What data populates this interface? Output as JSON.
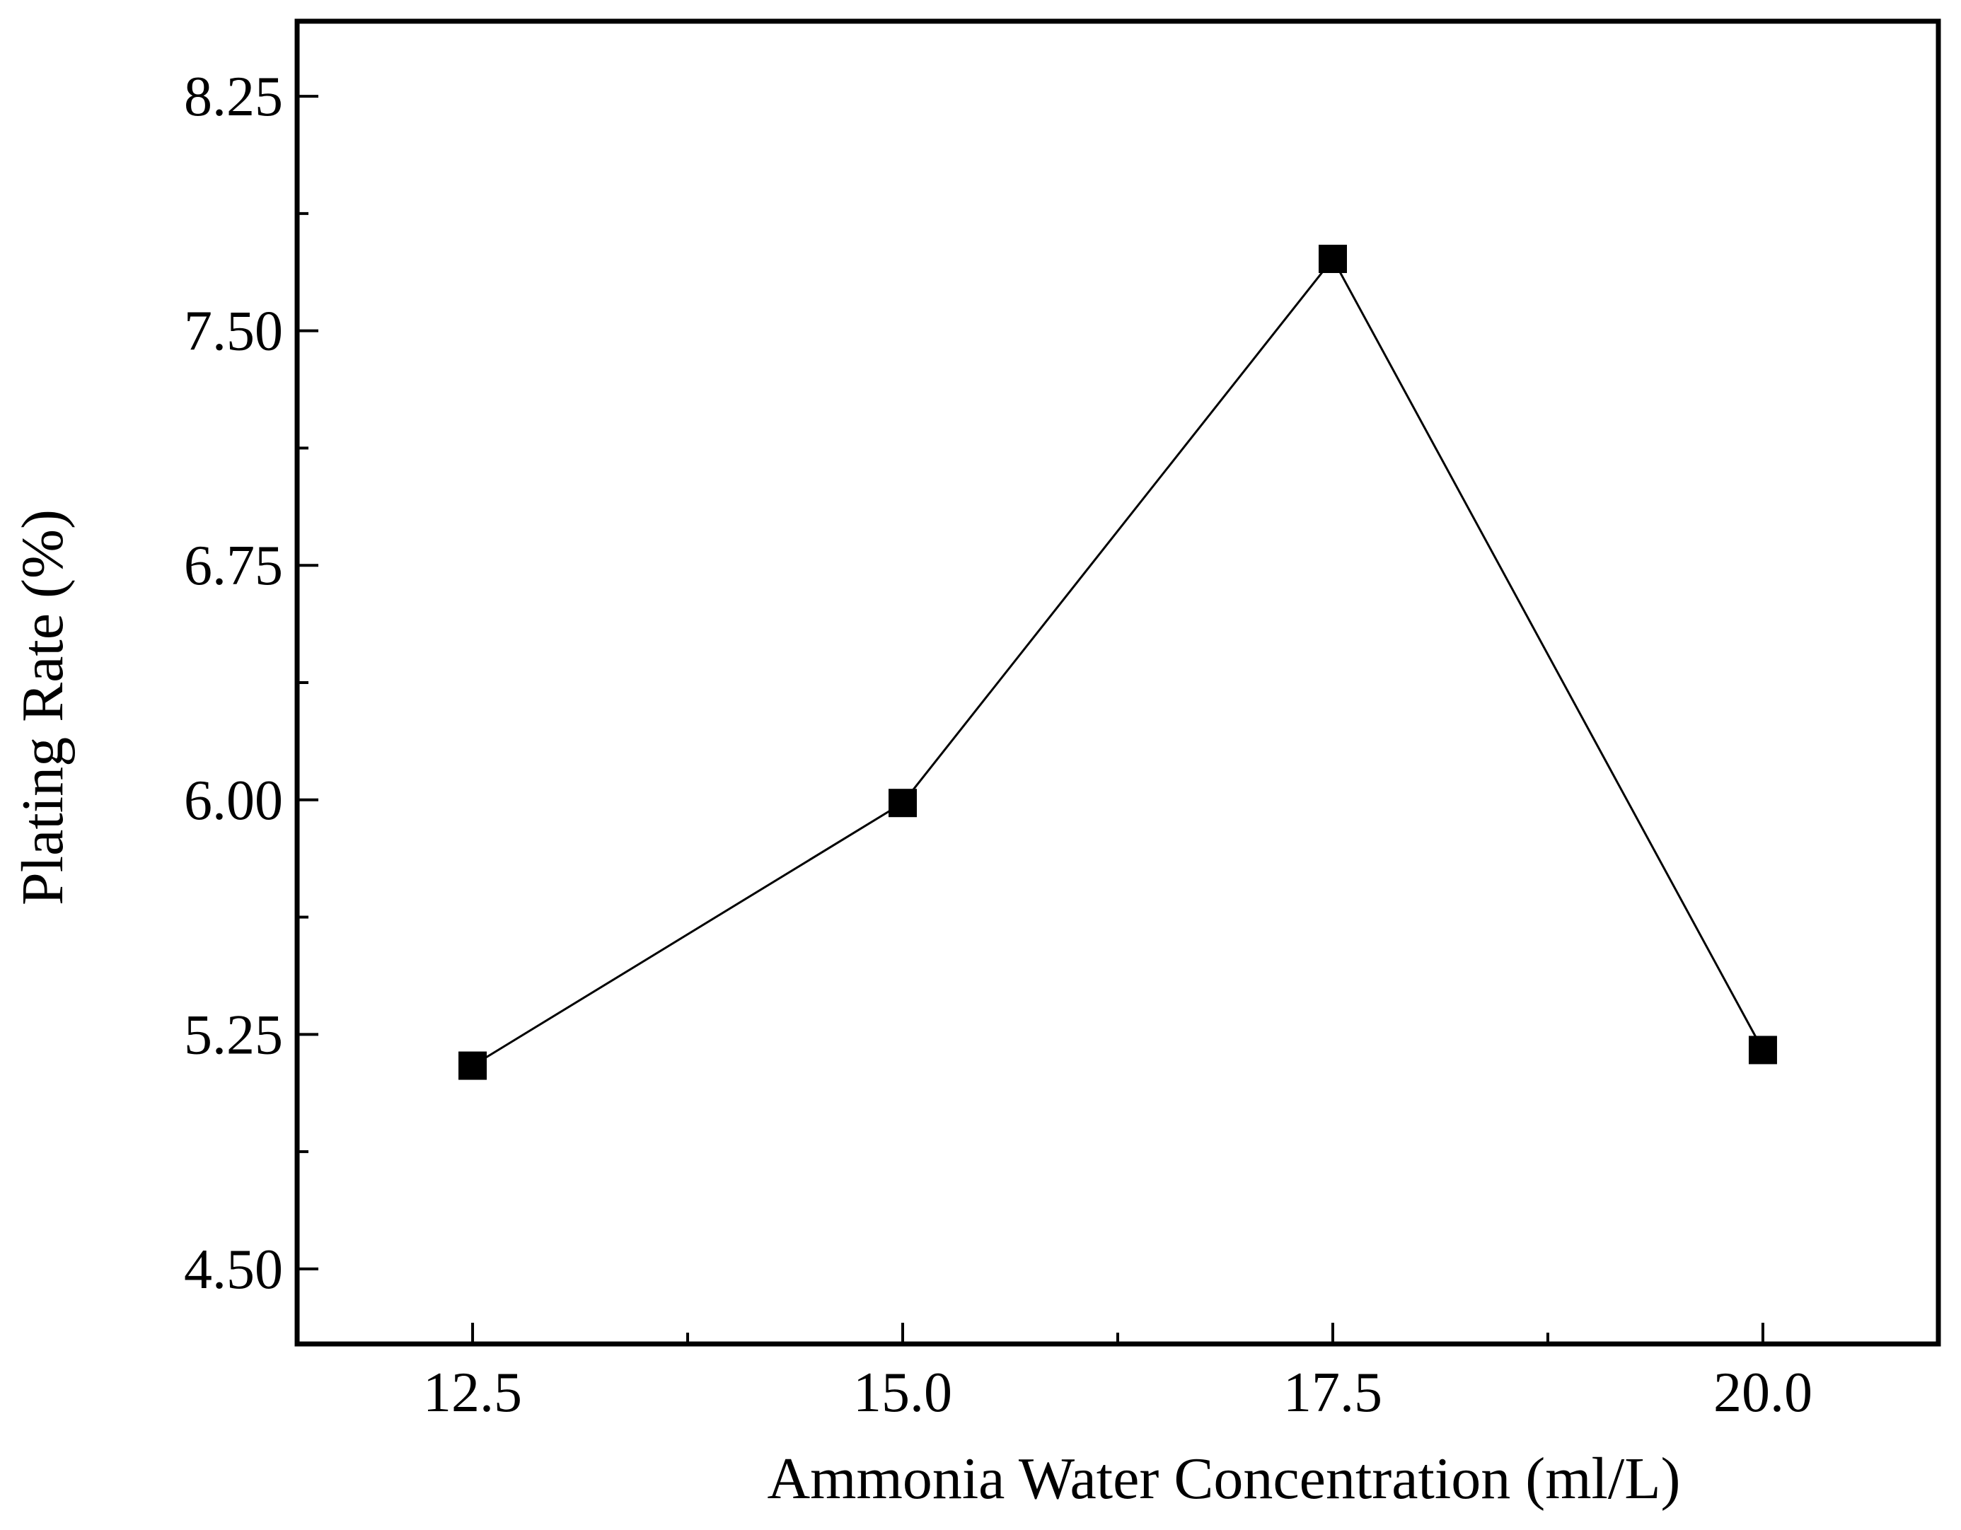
{
  "chart_data": {
    "type": "line",
    "title": "",
    "xlabel": "Ammonia Water Concentration (ml/L)",
    "ylabel": "Plating Rate (%)",
    "xlim": [
      11.48,
      21.02
    ],
    "ylim": [
      4.26,
      8.49
    ],
    "x_ticks": [
      12.5,
      15.0,
      17.5,
      20.0
    ],
    "x_tick_labels": [
      "12.5",
      "15.0",
      "17.5",
      "20.0"
    ],
    "x_minor_ticks": [
      13.75,
      16.25,
      18.75
    ],
    "y_ticks": [
      4.5,
      5.25,
      6.0,
      6.75,
      7.5,
      8.25
    ],
    "y_tick_labels": [
      "4.50",
      "5.25",
      "6.00",
      "6.75",
      "7.50",
      "8.25"
    ],
    "y_minor_ticks": [
      4.875,
      5.625,
      6.375,
      7.125,
      7.875
    ],
    "grid": false,
    "series": [
      {
        "name": "Plating Rate",
        "marker": "square",
        "color": "#000000",
        "x": [
          12.5,
          15.0,
          17.5,
          20.0
        ],
        "values": [
          5.15,
          5.99,
          7.73,
          5.2
        ]
      }
    ]
  }
}
